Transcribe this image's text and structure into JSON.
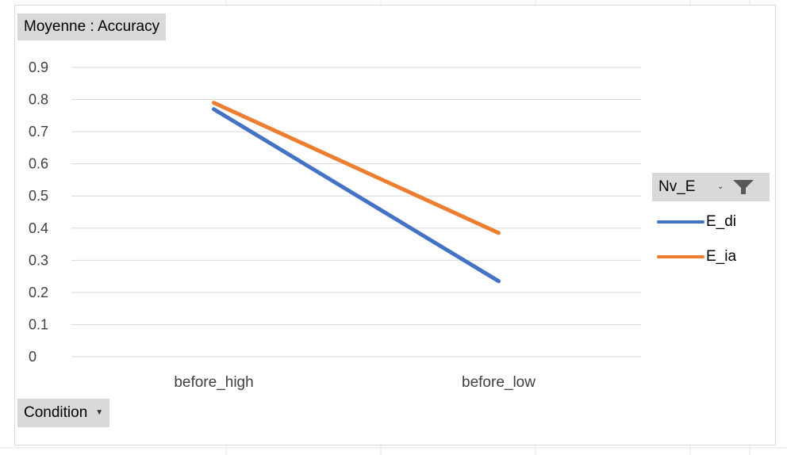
{
  "chart_data": {
    "type": "line",
    "title": "",
    "xlabel": "",
    "ylabel": "",
    "categories": [
      "before_high",
      "before_low"
    ],
    "ylim": [
      0,
      0.9
    ],
    "yticks": [
      "0.9",
      "0.8",
      "0.7",
      "0.6",
      "0.5",
      "0.4",
      "0.3",
      "0.2",
      "0.1",
      "0"
    ],
    "grid": true,
    "legend_position": "right",
    "series": [
      {
        "name": "E_di",
        "values": [
          0.77,
          0.235
        ],
        "color": "#4472C4"
      },
      {
        "name": "E_ia",
        "values": [
          0.79,
          0.385
        ],
        "color": "#ED7D31"
      }
    ]
  },
  "pivot": {
    "values_field": "Moyenne : Accuracy",
    "axis_field": "Condition",
    "legend_field": "Nv_E",
    "filter_icon": "filter-icon",
    "dropdown_icon": "chevron-down-icon"
  }
}
